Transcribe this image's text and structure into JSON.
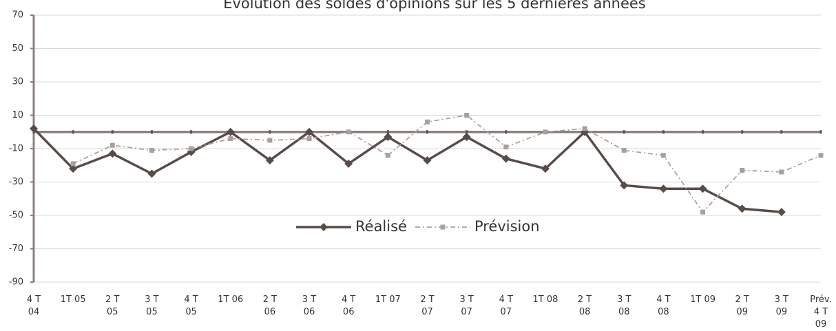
{
  "chart_data": {
    "type": "line",
    "title": "Evolution des soldes d'opinions sur les 5 dernières années",
    "categories": [
      "4 T\n04",
      "1T 05",
      "2 T\n05",
      "3 T\n05",
      "4 T\n05",
      "1T 06",
      "2 T\n06",
      "3 T\n06",
      "4 T\n06",
      "1T 07",
      "2 T\n07",
      "3 T\n07",
      "4 T\n07",
      "1T 08",
      "2 T\n08",
      "3 T\n08",
      "4 T\n08",
      "1T 09",
      "2 T\n09",
      "3 T\n09",
      "Prév.\n4 T\n09"
    ],
    "series": [
      {
        "name": "Réalisé",
        "color": "#584c48",
        "values": [
          2,
          -22,
          -13,
          -25,
          -12,
          0,
          -17,
          0,
          -19,
          -3,
          -17,
          -3,
          -16,
          -22,
          0,
          -32,
          -34,
          -34,
          -46,
          -48,
          null
        ]
      },
      {
        "name": "Prévision",
        "color": "#a8a09c",
        "values": [
          null,
          -19,
          -8,
          -11,
          -10,
          -4,
          -5,
          -4,
          0,
          -14,
          6,
          10,
          -9,
          0,
          2,
          -11,
          -14,
          -48,
          -23,
          -24,
          -14
        ]
      }
    ],
    "ylim": [
      -90,
      70
    ],
    "yticks": [
      -90,
      -70,
      -50,
      -30,
      -10,
      10,
      30,
      50,
      70
    ],
    "grid": true
  }
}
